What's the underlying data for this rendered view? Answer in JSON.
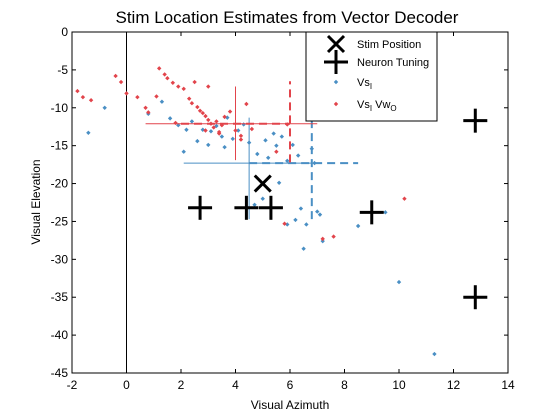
{
  "chart_data": {
    "type": "scatter",
    "title": "Stim Location Estimates from Vector Decoder",
    "xlabel": "Visual Azimuth",
    "ylabel": "Visual Elevation",
    "xlim": [
      -2,
      14
    ],
    "ylim": [
      -45,
      0
    ],
    "x_ticks": [
      -2,
      0,
      2,
      4,
      6,
      8,
      10,
      12,
      14
    ],
    "y_ticks": [
      0,
      -5,
      -10,
      -15,
      -20,
      -25,
      -30,
      -35,
      -40,
      -45
    ],
    "grid": false,
    "legend_position": "top-right",
    "colors": {
      "blue": "#4a8fc4",
      "red": "#e2444b",
      "black": "#000000"
    },
    "vertical_line_x": 0,
    "stim_position": {
      "name": "Stim Position",
      "x": 5.0,
      "y": -20.0
    },
    "neuron_tuning": {
      "name": "Neuron Tuning",
      "points": [
        {
          "x": 2.7,
          "y": -23.2
        },
        {
          "x": 4.4,
          "y": -23.2
        },
        {
          "x": 5.3,
          "y": -23.2
        },
        {
          "x": 9.0,
          "y": -23.8
        },
        {
          "x": 12.8,
          "y": -11.7
        },
        {
          "x": 12.8,
          "y": -35.0
        }
      ]
    },
    "legend": [
      {
        "key": "stim",
        "main": "Stim Position",
        "sub": "",
        "suffix": "",
        "suffix_sub": ""
      },
      {
        "key": "tuning",
        "main": "Neuron Tuning",
        "sub": "",
        "suffix": "",
        "suffix_sub": ""
      },
      {
        "key": "vs",
        "main": "Vs",
        "sub": "I",
        "suffix": "",
        "suffix_sub": ""
      },
      {
        "key": "vsw",
        "main": "Vs",
        "sub": "I",
        "suffix": " Vw",
        "suffix_sub": "O"
      }
    ],
    "series": [
      {
        "key": "vs",
        "color": "#4a8fc4",
        "mean": {
          "x": 4.5,
          "y": -17.3
        },
        "sd": {
          "x": 2.3,
          "y": 6.0
        },
        "mean_line_x": [
          2.1,
          6.9
        ],
        "mean_line_y": [
          -24.7,
          -11.3
        ],
        "sd_line_x": [
          4.5,
          8.5
        ],
        "sd_line_y": [
          -24.7,
          -10.0
        ],
        "points": [
          {
            "x": -1.4,
            "y": -13.3
          },
          {
            "x": -0.8,
            "y": -10.0
          },
          {
            "x": 0.8,
            "y": -10.8
          },
          {
            "x": 1.3,
            "y": -9.2
          },
          {
            "x": 1.6,
            "y": -11.4
          },
          {
            "x": 1.9,
            "y": -12.3
          },
          {
            "x": 2.1,
            "y": -15.8
          },
          {
            "x": 2.2,
            "y": -12.9
          },
          {
            "x": 2.4,
            "y": -11.8
          },
          {
            "x": 2.6,
            "y": -14.4
          },
          {
            "x": 2.8,
            "y": -12.9
          },
          {
            "x": 3.0,
            "y": -14.9
          },
          {
            "x": 3.1,
            "y": -13.1
          },
          {
            "x": 3.3,
            "y": -12.4
          },
          {
            "x": 3.5,
            "y": -13.8
          },
          {
            "x": 3.6,
            "y": -15.2
          },
          {
            "x": 3.7,
            "y": -11.3
          },
          {
            "x": 3.9,
            "y": -14.1
          },
          {
            "x": 4.1,
            "y": -13.0
          },
          {
            "x": 4.3,
            "y": -12.2
          },
          {
            "x": 4.5,
            "y": -14.6
          },
          {
            "x": 4.8,
            "y": -16.1
          },
          {
            "x": 5.1,
            "y": -14.3
          },
          {
            "x": 5.2,
            "y": -16.6
          },
          {
            "x": 5.4,
            "y": -13.4
          },
          {
            "x": 5.5,
            "y": -15.0
          },
          {
            "x": 5.7,
            "y": -13.8
          },
          {
            "x": 5.9,
            "y": -17.0
          },
          {
            "x": 6.1,
            "y": -14.9
          },
          {
            "x": 6.3,
            "y": -16.3
          },
          {
            "x": 6.8,
            "y": -15.4
          },
          {
            "x": 6.9,
            "y": -17.3
          },
          {
            "x": 5.0,
            "y": -22.0
          },
          {
            "x": 4.7,
            "y": -22.8
          },
          {
            "x": 5.6,
            "y": -19.9
          },
          {
            "x": 6.2,
            "y": -24.8
          },
          {
            "x": 5.9,
            "y": -25.4
          },
          {
            "x": 6.6,
            "y": -25.4
          },
          {
            "x": 7.1,
            "y": -24.1
          },
          {
            "x": 6.4,
            "y": -23.3
          },
          {
            "x": 6.5,
            "y": -28.6
          },
          {
            "x": 7.2,
            "y": -27.6
          },
          {
            "x": 7.0,
            "y": -23.7
          },
          {
            "x": 8.5,
            "y": -25.6
          },
          {
            "x": 9.5,
            "y": -23.8
          },
          {
            "x": 10.0,
            "y": -33.0
          },
          {
            "x": 11.3,
            "y": -42.5
          }
        ]
      },
      {
        "key": "vsw",
        "color": "#e2444b",
        "mean": {
          "x": 4.0,
          "y": -12.1
        },
        "sd": {
          "x": 2.0,
          "y": 5.0
        },
        "mean_line_x": [
          0.7,
          7.0
        ],
        "mean_line_y": [
          -16.9,
          -7.2
        ],
        "sd_line_x": [
          2.0,
          6.0
        ],
        "sd_line_y": [
          -17.2,
          -6.5
        ],
        "points": [
          {
            "x": -1.8,
            "y": -7.8
          },
          {
            "x": -1.6,
            "y": -8.6
          },
          {
            "x": -1.3,
            "y": -9.0
          },
          {
            "x": -0.4,
            "y": -5.8
          },
          {
            "x": -0.2,
            "y": -6.6
          },
          {
            "x": 0.0,
            "y": -8.1
          },
          {
            "x": 0.4,
            "y": -8.6
          },
          {
            "x": 0.7,
            "y": -10.0
          },
          {
            "x": 0.8,
            "y": -10.6
          },
          {
            "x": 1.1,
            "y": -8.5
          },
          {
            "x": 1.2,
            "y": -4.8
          },
          {
            "x": 1.4,
            "y": -5.6
          },
          {
            "x": 1.5,
            "y": -6.1
          },
          {
            "x": 1.7,
            "y": -6.7
          },
          {
            "x": 1.9,
            "y": -7.2
          },
          {
            "x": 2.1,
            "y": -7.5
          },
          {
            "x": 2.3,
            "y": -8.8
          },
          {
            "x": 2.4,
            "y": -9.4
          },
          {
            "x": 2.6,
            "y": -9.9
          },
          {
            "x": 2.7,
            "y": -10.4
          },
          {
            "x": 2.8,
            "y": -10.7
          },
          {
            "x": 2.9,
            "y": -11.1
          },
          {
            "x": 3.0,
            "y": -11.6
          },
          {
            "x": 3.1,
            "y": -12.1
          },
          {
            "x": 3.2,
            "y": -12.6
          },
          {
            "x": 3.3,
            "y": -11.8
          },
          {
            "x": 3.4,
            "y": -13.4
          },
          {
            "x": 3.5,
            "y": -12.3
          },
          {
            "x": 3.6,
            "y": -11.2
          },
          {
            "x": 3.8,
            "y": -10.5
          },
          {
            "x": 4.0,
            "y": -13.0
          },
          {
            "x": 4.2,
            "y": -14.2
          },
          {
            "x": 4.4,
            "y": -9.5
          },
          {
            "x": 4.6,
            "y": -12.8
          },
          {
            "x": 3.0,
            "y": -7.2
          },
          {
            "x": 2.5,
            "y": -6.6
          },
          {
            "x": 4.2,
            "y": -13.7
          },
          {
            "x": 5.5,
            "y": -15.8
          },
          {
            "x": 5.8,
            "y": -25.3
          },
          {
            "x": 7.2,
            "y": -27.3
          },
          {
            "x": 7.6,
            "y": -27.0
          },
          {
            "x": 10.2,
            "y": -22.0
          },
          {
            "x": 3.4,
            "y": -13.2
          },
          {
            "x": 2.9,
            "y": -13.0
          },
          {
            "x": 1.8,
            "y": -12.0
          },
          {
            "x": 5.9,
            "y": -12.2
          }
        ]
      }
    ]
  }
}
